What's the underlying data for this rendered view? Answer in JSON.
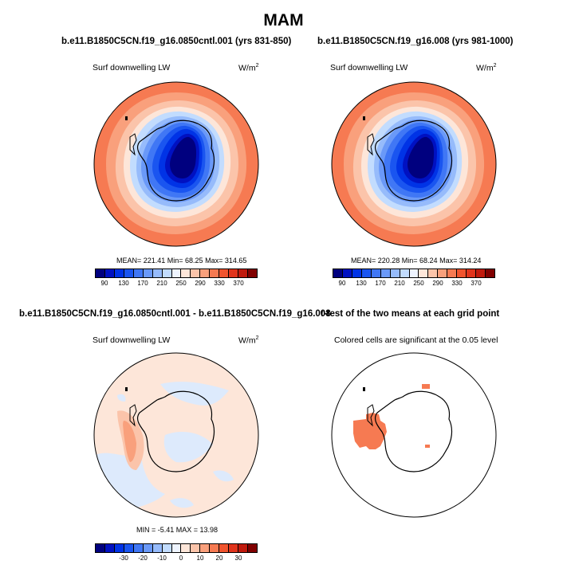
{
  "season": "MAM",
  "panels": {
    "top_left": {
      "title": "b.e11.B1850C5CN.f19_g16.0850cntl.001 (yrs 831-850)",
      "variable": "Surf downwelling LW",
      "units_base": "W/m",
      "units_exp": "2",
      "stats": "MEAN= 221.41  Min=  68.25  Max= 314.65"
    },
    "top_right": {
      "title": "b.e11.B1850C5CN.f19_g16.008 (yrs 981-1000)",
      "variable": "Surf downwelling LW",
      "units_base": "W/m",
      "units_exp": "2",
      "stats": "MEAN= 220.28  Min=  68.24  Max= 314.24"
    },
    "bottom_left": {
      "title": "b.e11.B1850C5CN.f19_g16.0850cntl.001 - b.e11.B1850C5CN.f19_g16.008",
      "variable": "Surf downwelling LW",
      "units_base": "W/m",
      "units_exp": "2",
      "stats": "MIN =  -5.41  MAX =  13.98"
    },
    "bottom_right": {
      "title": "t-test of the two means at each grid point",
      "subtitle": "Colored cells are significant at the 0.05 level"
    }
  },
  "colorbar_abs": {
    "colors": [
      "#00007f",
      "#0011c2",
      "#0033e6",
      "#1a55f0",
      "#4077f5",
      "#6a99f8",
      "#96bbfb",
      "#c2dcfe",
      "#eef4ff",
      "#fde6d9",
      "#fbc4aa",
      "#f9a07c",
      "#f67a52",
      "#f0542e",
      "#e0341c",
      "#c01a0d",
      "#800000"
    ],
    "labels": [
      "90",
      "130",
      "170",
      "210",
      "250",
      "290",
      "330",
      "370"
    ]
  },
  "colorbar_diff": {
    "colors": [
      "#00007f",
      "#0011c2",
      "#0033e6",
      "#1a55f0",
      "#4077f5",
      "#6a99f8",
      "#96bbfb",
      "#c2dcfe",
      "#eef4ff",
      "#fde6d9",
      "#fbc4aa",
      "#f9a07c",
      "#f67a52",
      "#f0542e",
      "#e0341c",
      "#c01a0d",
      "#800000"
    ],
    "labels": [
      "-30",
      "-20",
      "-10",
      "0",
      "10",
      "20",
      "30"
    ]
  }
}
